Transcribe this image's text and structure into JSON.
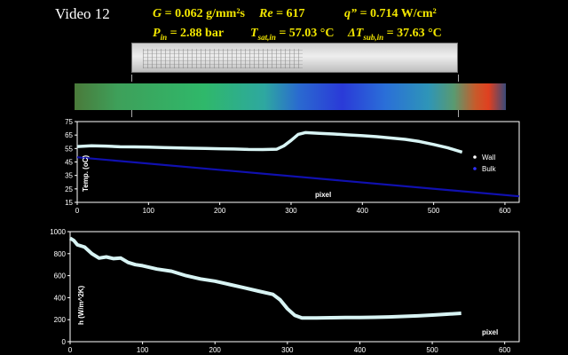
{
  "header": {
    "video_label": "Video 12",
    "params": {
      "G": {
        "label": "G",
        "value": "= 0.062 g/mm²s"
      },
      "Re": {
        "label": "Re",
        "value": "= 617"
      },
      "q": {
        "label": "q” =",
        "value": "0.714 W/cm²"
      },
      "Pin": {
        "label": "P",
        "sub": "in",
        "value": "= 2.88 bar"
      },
      "Tsat": {
        "label": "T",
        "sub": "sat,in",
        "value": "= 57.03 °C"
      },
      "dTsub": {
        "label": "ΔT",
        "sub": "sub,in",
        "value": "= 37.63 °C"
      }
    }
  },
  "chart_data": [
    {
      "type": "line",
      "title": "",
      "xlabel": "pixel",
      "ylabel": "Temp. (oC)",
      "xlim": [
        0,
        620
      ],
      "ylim": [
        15,
        75
      ],
      "xticks": [
        "0",
        "100",
        "200",
        "300",
        "400",
        "500",
        "600"
      ],
      "yticks": [
        "15",
        "25",
        "35",
        "45",
        "55",
        "65",
        "75"
      ],
      "legend_position": "right",
      "series": [
        {
          "name": "Wall",
          "color": "#d8f4f4",
          "x": [
            0,
            20,
            40,
            60,
            80,
            100,
            120,
            140,
            160,
            180,
            200,
            220,
            240,
            260,
            280,
            290,
            300,
            310,
            320,
            340,
            360,
            380,
            400,
            420,
            440,
            460,
            480,
            500,
            520,
            540
          ],
          "y": [
            56.5,
            57,
            56.8,
            56.3,
            56.2,
            56.0,
            55.7,
            55.5,
            55.2,
            55.0,
            54.8,
            54.6,
            54.3,
            54.2,
            54.5,
            57,
            61,
            65.5,
            66.8,
            66.3,
            65.8,
            65.1,
            64.5,
            63.8,
            62.8,
            61.8,
            60.2,
            58.0,
            55.5,
            52.3
          ]
        },
        {
          "name": "Bulk",
          "color": "#1010b0",
          "x": [
            0,
            620
          ],
          "y": [
            48.5,
            19.5
          ]
        }
      ]
    },
    {
      "type": "line",
      "title": "",
      "xlabel": "pixel",
      "ylabel": "h (W/m^2K)",
      "xlim": [
        0,
        620
      ],
      "ylim": [
        0,
        1000
      ],
      "xticks": [
        "0",
        "100",
        "200",
        "300",
        "400",
        "500",
        "600"
      ],
      "yticks": [
        "0",
        "200",
        "400",
        "600",
        "800",
        "1000"
      ],
      "series": [
        {
          "color": "#d8f4f4",
          "x": [
            0,
            5,
            10,
            20,
            30,
            40,
            50,
            60,
            70,
            80,
            90,
            100,
            120,
            140,
            160,
            180,
            200,
            220,
            240,
            260,
            280,
            290,
            300,
            310,
            320,
            340,
            360,
            380,
            400,
            420,
            440,
            460,
            480,
            500,
            520,
            540
          ],
          "y": [
            940,
            920,
            880,
            860,
            800,
            760,
            770,
            755,
            760,
            720,
            700,
            690,
            660,
            640,
            600,
            570,
            550,
            520,
            490,
            460,
            430,
            380,
            300,
            240,
            215,
            215,
            218,
            220,
            220,
            222,
            225,
            230,
            235,
            242,
            250,
            258
          ]
        }
      ]
    }
  ]
}
